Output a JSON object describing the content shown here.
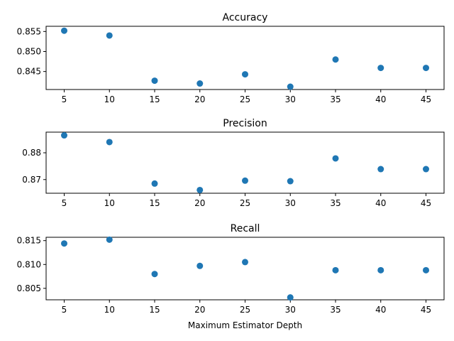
{
  "chart_data": [
    {
      "type": "scatter",
      "title": "Accuracy",
      "xlabel": "",
      "ylabel": "",
      "x": [
        5,
        10,
        15,
        20,
        25,
        30,
        35,
        40,
        45
      ],
      "y": [
        0.8552,
        0.854,
        0.8427,
        0.842,
        0.8443,
        0.8412,
        0.848,
        0.8459,
        0.8459
      ],
      "xlim": [
        3,
        47
      ],
      "ylim": [
        0.8405,
        0.8563
      ],
      "xticks": [
        5,
        10,
        15,
        20,
        25,
        30,
        35,
        40,
        45
      ],
      "xtick_labels": [
        "5",
        "10",
        "15",
        "20",
        "25",
        "30",
        "35",
        "40",
        "45"
      ],
      "yticks": [
        0.845,
        0.85,
        0.855
      ],
      "ytick_labels": [
        "0.845",
        "0.850",
        "0.855"
      ],
      "color": "#1f77b4"
    },
    {
      "type": "scatter",
      "title": "Precision",
      "xlabel": "",
      "ylabel": "",
      "x": [
        5,
        10,
        15,
        20,
        25,
        30,
        35,
        40,
        45
      ],
      "y": [
        0.8865,
        0.884,
        0.8685,
        0.8661,
        0.8696,
        0.8694,
        0.8779,
        0.8739,
        0.8739
      ],
      "xlim": [
        3,
        47
      ],
      "ylim": [
        0.8649,
        0.8877
      ],
      "xticks": [
        5,
        10,
        15,
        20,
        25,
        30,
        35,
        40,
        45
      ],
      "xtick_labels": [
        "5",
        "10",
        "15",
        "20",
        "25",
        "30",
        "35",
        "40",
        "45"
      ],
      "yticks": [
        0.87,
        0.88
      ],
      "ytick_labels": [
        "0.87",
        "0.88"
      ],
      "color": "#1f77b4"
    },
    {
      "type": "scatter",
      "title": "Recall",
      "xlabel": "Maximum Estimator Depth",
      "ylabel": "",
      "x": [
        5,
        10,
        15,
        20,
        25,
        30,
        35,
        40,
        45
      ],
      "y": [
        0.8144,
        0.8152,
        0.808,
        0.8097,
        0.8105,
        0.8031,
        0.8088,
        0.8088,
        0.8088
      ],
      "xlim": [
        3,
        47
      ],
      "ylim": [
        0.8026,
        0.8157
      ],
      "xticks": [
        5,
        10,
        15,
        20,
        25,
        30,
        35,
        40,
        45
      ],
      "xtick_labels": [
        "5",
        "10",
        "15",
        "20",
        "25",
        "30",
        "35",
        "40",
        "45"
      ],
      "yticks": [
        0.805,
        0.81,
        0.815
      ],
      "ytick_labels": [
        "0.805",
        "0.810",
        "0.815"
      ],
      "color": "#1f77b4"
    }
  ]
}
